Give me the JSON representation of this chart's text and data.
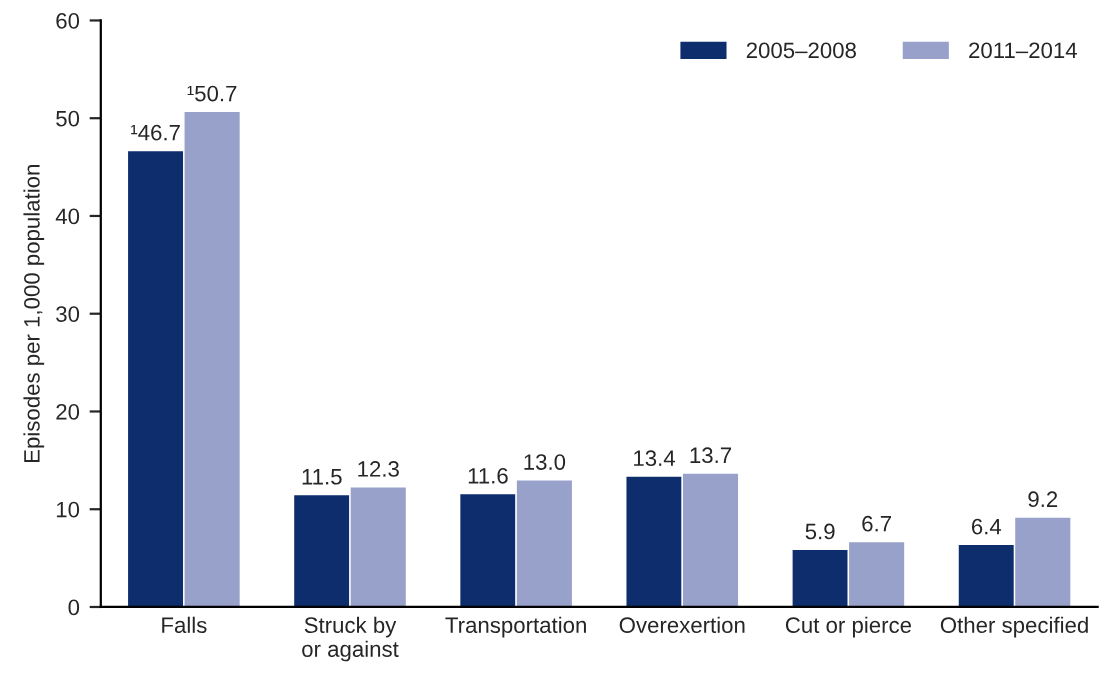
{
  "chart_data": {
    "type": "bar",
    "ylabel": "Episodes per 1,000 population",
    "categories": [
      "Falls",
      "Struck by\nor against",
      "Transportation",
      "Overexertion",
      "Cut or pierce",
      "Other specified"
    ],
    "series": [
      {
        "name": "2005–2008",
        "color": "#0d2d6c",
        "values": [
          46.7,
          11.5,
          11.6,
          13.4,
          5.9,
          6.4
        ],
        "value_labels": [
          "¹46.7",
          "11.5",
          "11.6",
          "13.4",
          "5.9",
          "6.4"
        ]
      },
      {
        "name": "2011–2014",
        "color": "#97a1c9",
        "values": [
          50.7,
          12.3,
          13.0,
          13.7,
          6.7,
          9.2
        ],
        "value_labels": [
          "¹50.7",
          "12.3",
          "13.0",
          "13.7",
          "6.7",
          "9.2"
        ]
      }
    ],
    "ylim": [
      0,
      60
    ],
    "yticks": [
      0,
      10,
      20,
      30,
      40,
      50,
      60
    ],
    "grid": false,
    "legend": "top right"
  }
}
